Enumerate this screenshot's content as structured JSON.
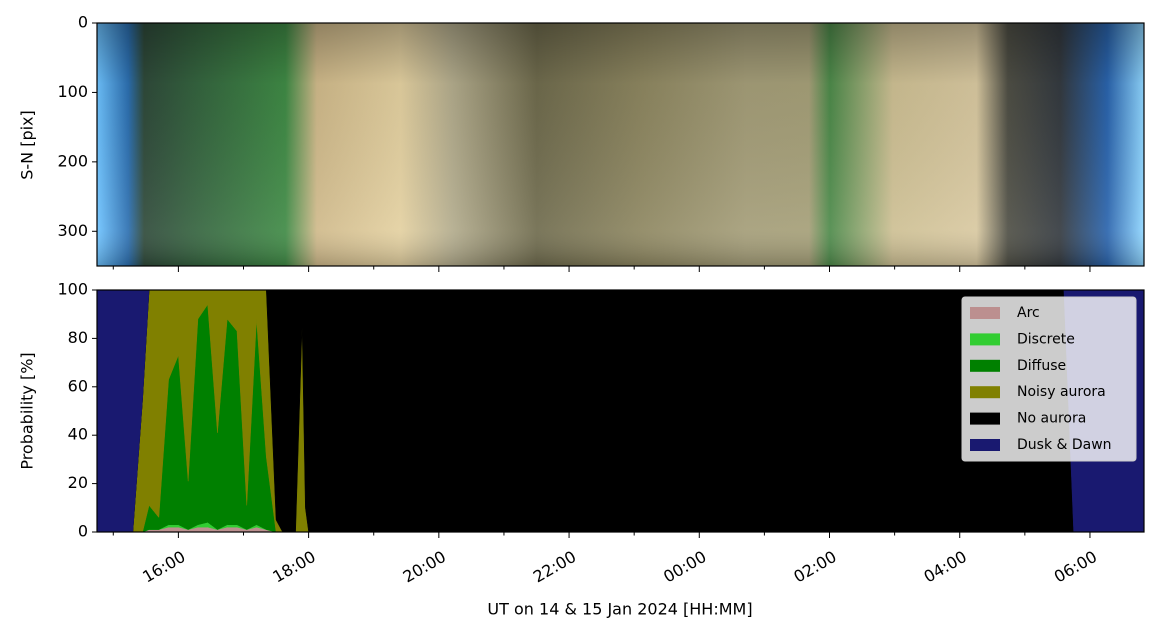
{
  "chart_data": [
    {
      "type": "image",
      "ylabel": "S-N [pix]",
      "ylim": [
        350,
        0
      ],
      "yticks": [
        0,
        100,
        200,
        300
      ]
    },
    {
      "type": "stackedarea",
      "ylabel": "Probability [%]",
      "xlabel": "UT on 14 & 15 Jan 2024 [HH:MM]",
      "xlim": [
        14.75,
        30.83
      ],
      "xticks": [
        {
          "value": 16,
          "label": "16:00"
        },
        {
          "value": 18,
          "label": "18:00"
        },
        {
          "value": 20,
          "label": "20:00"
        },
        {
          "value": 22,
          "label": "22:00"
        },
        {
          "value": 24,
          "label": "00:00"
        },
        {
          "value": 26,
          "label": "02:00"
        },
        {
          "value": 28,
          "label": "04:00"
        },
        {
          "value": 30,
          "label": "06:00"
        }
      ],
      "xminorticks": [
        15,
        17,
        19,
        21,
        23,
        25,
        27,
        29
      ],
      "ylim": [
        0,
        100
      ],
      "yticks": [
        0,
        20,
        40,
        60,
        80,
        100
      ],
      "legend": "upper right",
      "x": [
        14.75,
        15.3,
        15.45,
        15.55,
        15.7,
        15.85,
        16.0,
        16.15,
        16.3,
        16.45,
        16.6,
        16.75,
        16.9,
        17.05,
        17.2,
        17.35,
        17.5,
        17.6,
        17.8,
        17.9,
        17.95,
        18.0,
        20,
        24,
        28,
        29.6,
        29.75,
        30.83
      ],
      "series": [
        {
          "name": "Arc",
          "color": "#bc8f8f",
          "values": [
            0,
            0,
            0,
            1,
            1,
            2,
            2,
            1,
            2,
            2,
            1,
            2,
            2,
            1,
            2,
            1,
            0,
            0,
            0,
            0,
            0,
            0,
            0,
            0,
            0,
            0,
            0,
            0
          ]
        },
        {
          "name": "Discrete",
          "color": "#32cd32",
          "values": [
            0,
            0,
            0,
            0,
            0,
            1,
            1,
            0,
            1,
            2,
            0,
            1,
            1,
            0,
            1,
            0,
            0,
            0,
            0,
            0,
            0,
            0,
            0,
            0,
            0,
            0,
            0,
            0
          ]
        },
        {
          "name": "Diffuse",
          "color": "#008000",
          "values": [
            0,
            0,
            0,
            10,
            5,
            60,
            70,
            20,
            85,
            90,
            40,
            85,
            80,
            10,
            85,
            30,
            0,
            0,
            0,
            0,
            0,
            0,
            0,
            0,
            0,
            0,
            0,
            0
          ]
        },
        {
          "name": "Noisy aurora",
          "color": "#808000",
          "values": [
            0,
            0,
            55,
            89,
            94,
            37,
            27,
            79,
            12,
            6,
            59,
            12,
            17,
            89,
            12,
            69,
            5,
            0,
            0,
            85,
            10,
            0,
            0,
            0,
            0,
            0,
            0,
            0
          ]
        },
        {
          "name": "No aurora",
          "color": "#000000",
          "values": [
            0,
            0,
            0,
            0,
            0,
            0,
            0,
            0,
            0,
            0,
            0,
            0,
            0,
            0,
            0,
            0,
            95,
            100,
            100,
            15,
            90,
            100,
            100,
            100,
            100,
            100,
            0,
            0
          ]
        },
        {
          "name": "Dusk & Dawn",
          "color": "#191970",
          "values": [
            100,
            100,
            45,
            0,
            0,
            0,
            0,
            0,
            0,
            0,
            0,
            0,
            0,
            0,
            0,
            0,
            0,
            0,
            0,
            0,
            0,
            0,
            0,
            0,
            0,
            0,
            100,
            100
          ]
        }
      ]
    }
  ]
}
